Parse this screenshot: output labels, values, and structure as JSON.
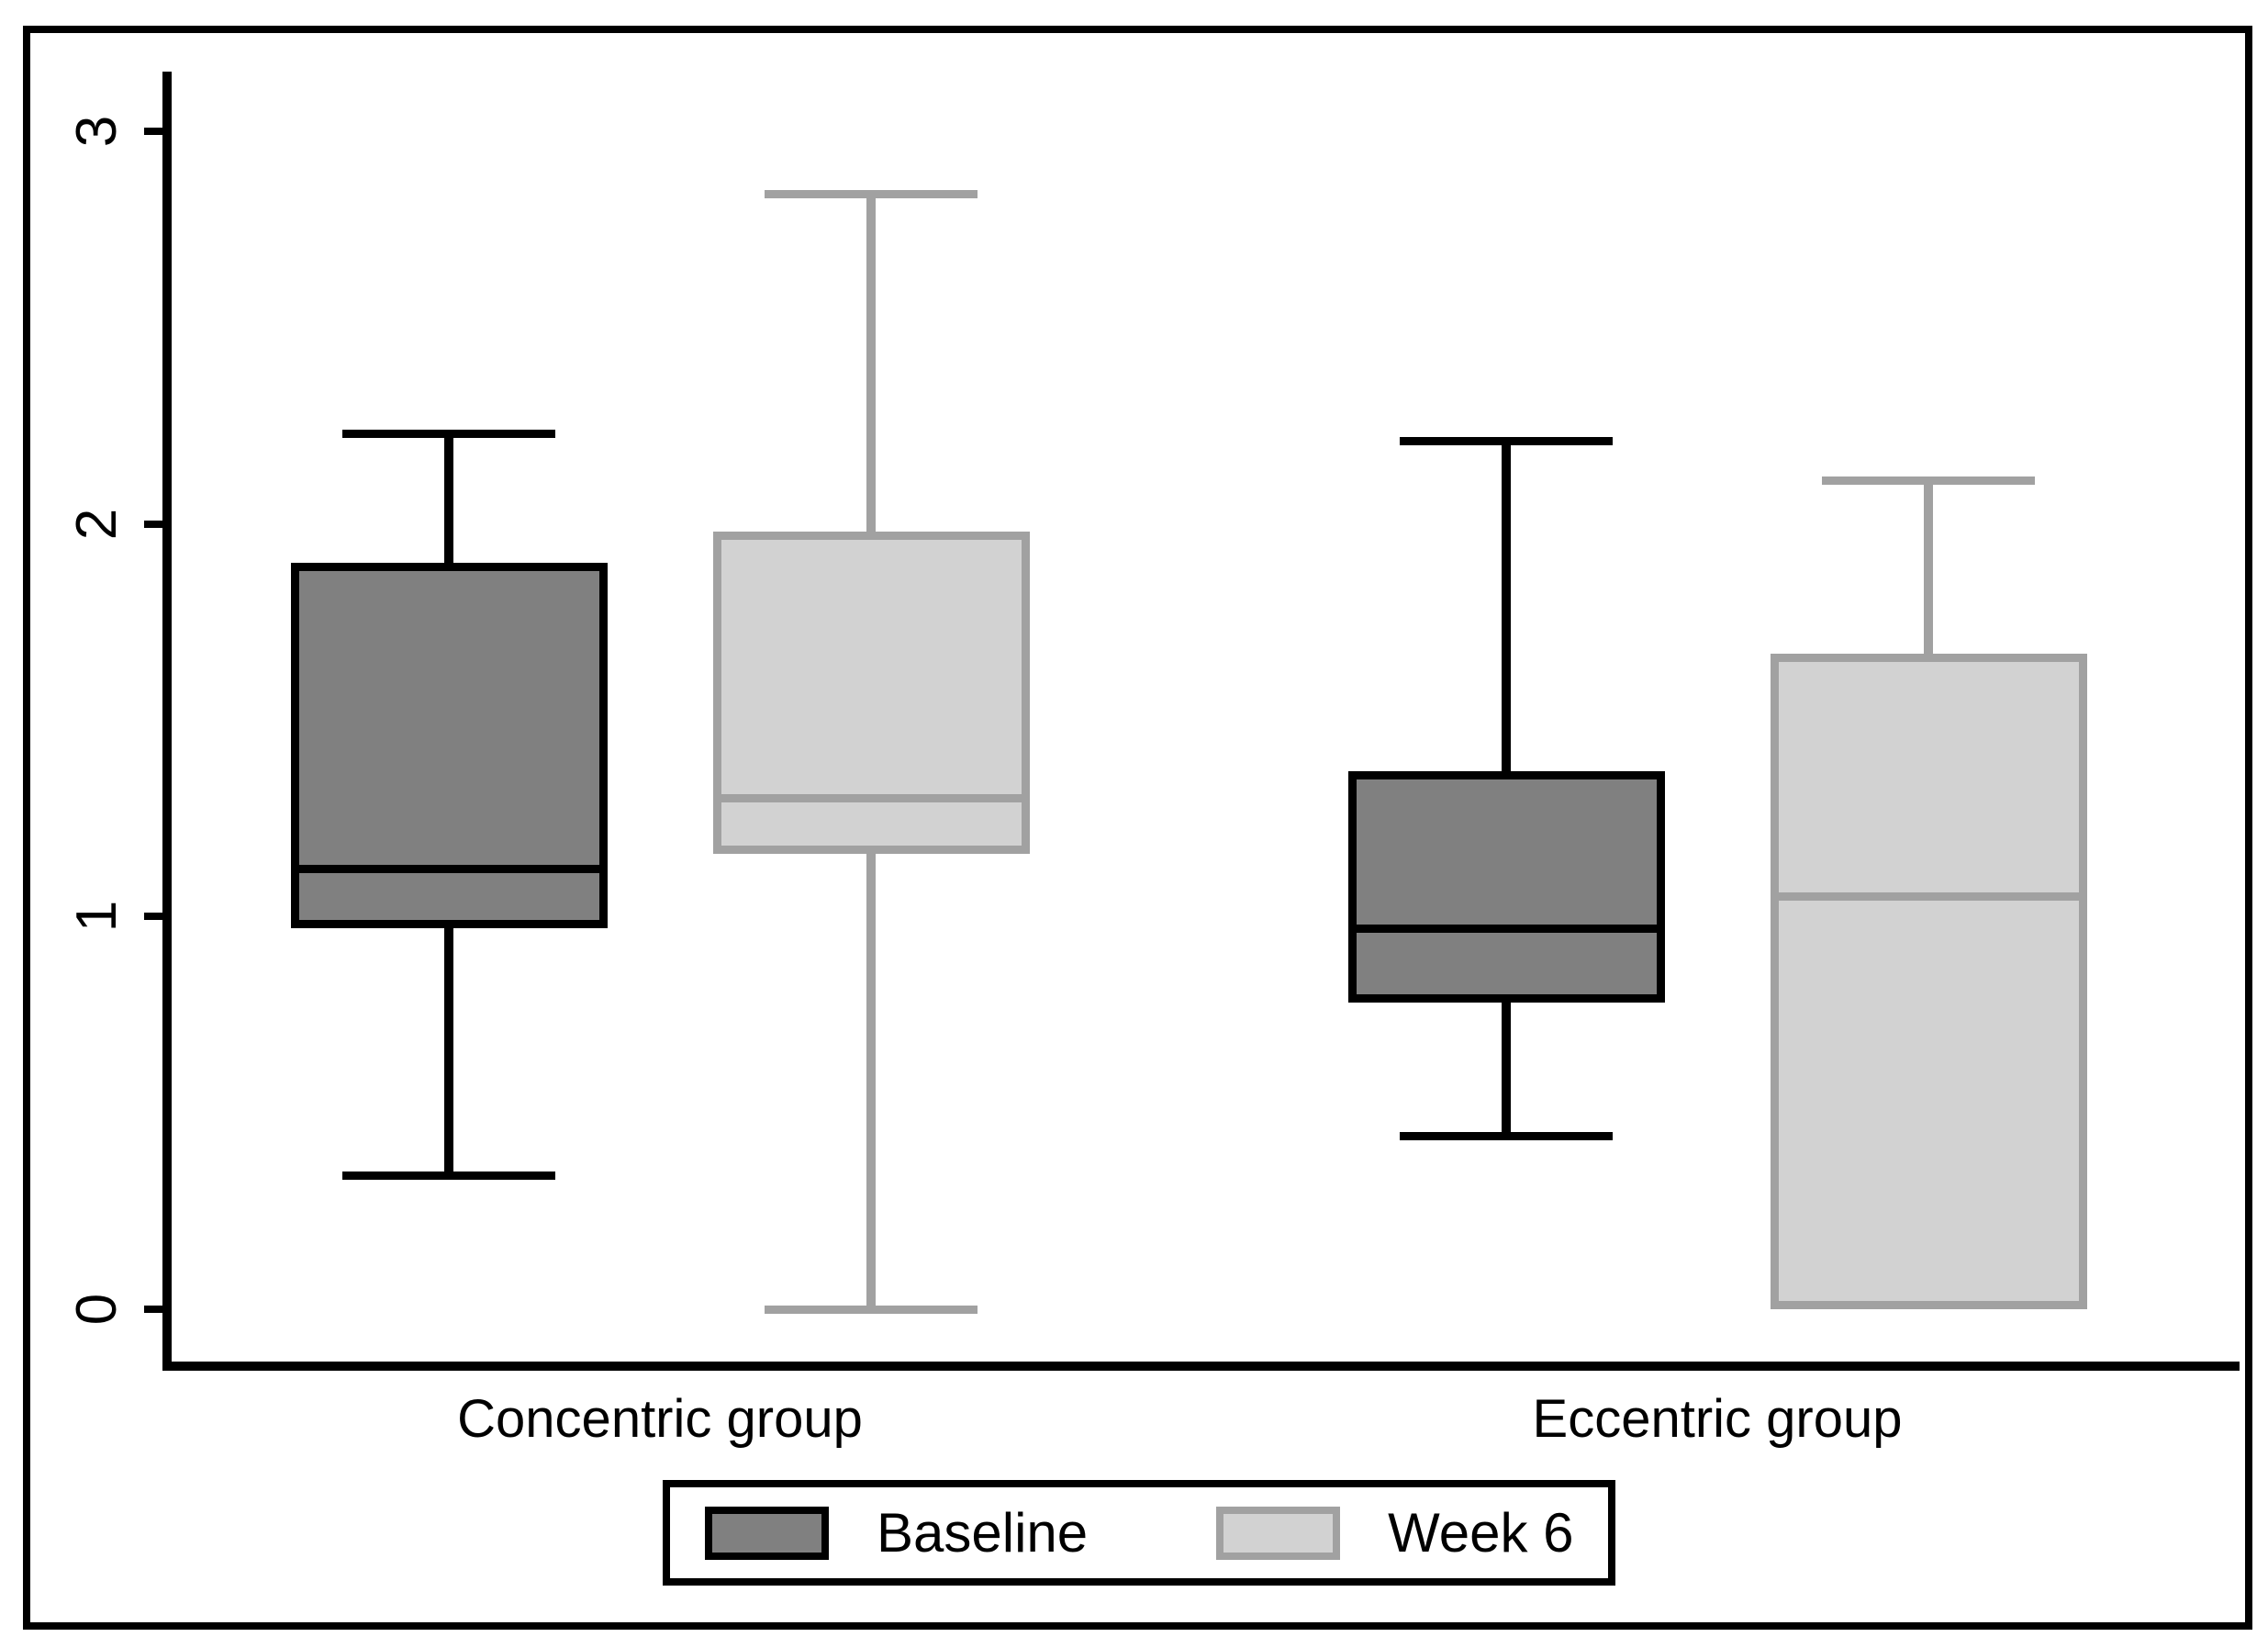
{
  "chart_data": {
    "type": "box",
    "title": "",
    "xlabel": "",
    "ylabel": "",
    "y_axis": {
      "min": 0,
      "max": 3,
      "ticks": [
        0,
        1,
        2,
        3
      ]
    },
    "categories": [
      "Concentric group",
      "Eccentric group"
    ],
    "grid": false,
    "legend_position": "bottom-center",
    "series": [
      {
        "name": "Baseline",
        "fill_color": "#808080",
        "border_color": "#000000",
        "boxes": [
          {
            "group": "Concentric group",
            "whisker_low": 0.34,
            "q1": 0.97,
            "median": 1.12,
            "q3": 1.9,
            "whisker_high": 2.23
          },
          {
            "group": "Eccentric group",
            "whisker_low": 0.44,
            "q1": 0.78,
            "median": 0.97,
            "q3": 1.37,
            "whisker_high": 2.21
          }
        ]
      },
      {
        "name": "Week 6",
        "fill_color": "#d2d2d2",
        "border_color": "#a1a1a1",
        "boxes": [
          {
            "group": "Concentric group",
            "whisker_low": 0.0,
            "q1": 1.16,
            "median": 1.3,
            "q3": 1.98,
            "whisker_high": 2.84
          },
          {
            "group": "Eccentric group",
            "whisker_low": 0.0,
            "q1": 0.0,
            "median": 1.05,
            "q3": 1.67,
            "whisker_high": 2.11
          }
        ]
      }
    ],
    "colors": {
      "axis": "#000000",
      "background": "#ffffff",
      "baseline_fill": "#808080",
      "baseline_border": "#000000",
      "week6_fill": "#d2d2d2",
      "week6_border": "#a1a1a1"
    }
  },
  "legend": {
    "entries": [
      {
        "label": "Baseline"
      },
      {
        "label": "Week 6"
      }
    ]
  }
}
